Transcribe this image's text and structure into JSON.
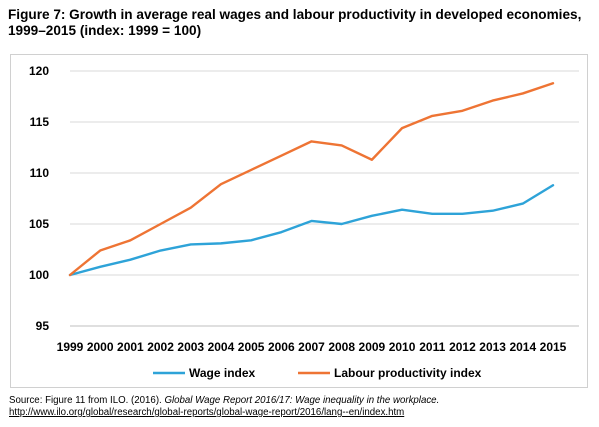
{
  "title": "Figure 7: Growth in average real wages and labour productivity in developed economies, 1999–2015 (index: 1999 = 100)",
  "colors": {
    "wage": "#2ea3d8",
    "productivity": "#ee7434",
    "grid": "#d9d9d9",
    "axis": "#bfbfbf"
  },
  "chart_data": {
    "type": "line",
    "x": [
      "1999",
      "2000",
      "2001",
      "2002",
      "2003",
      "2004",
      "2005",
      "2006",
      "2007",
      "2008",
      "2009",
      "2010",
      "2011",
      "2012",
      "2013",
      "2014",
      "2015"
    ],
    "series": [
      {
        "name": "Wage index",
        "values": [
          100,
          100.8,
          101.5,
          102.4,
          103.0,
          103.1,
          103.4,
          104.2,
          105.3,
          105.0,
          105.8,
          106.4,
          106.0,
          106.0,
          106.3,
          107.0,
          108.8
        ]
      },
      {
        "name": "Labour productivity index",
        "values": [
          100,
          102.4,
          103.4,
          105.0,
          106.6,
          108.9,
          110.3,
          111.7,
          113.1,
          112.7,
          111.3,
          114.4,
          115.6,
          116.1,
          117.1,
          117.8,
          118.8
        ]
      }
    ],
    "yticks": [
      95,
      100,
      105,
      110,
      115,
      120
    ],
    "ylim": [
      95,
      120
    ],
    "xlabel": "",
    "ylabel": "",
    "grid": true,
    "legend": "bottom-center"
  },
  "source": {
    "prefix": "Source: Figure 11 from ILO. (2016). ",
    "italic": "Global Wage Report 2016/17: Wage inequality in the workplace.",
    "url": "http://www.ilo.org/global/research/global-reports/global-wage-report/2016/lang--en/index.htm"
  }
}
